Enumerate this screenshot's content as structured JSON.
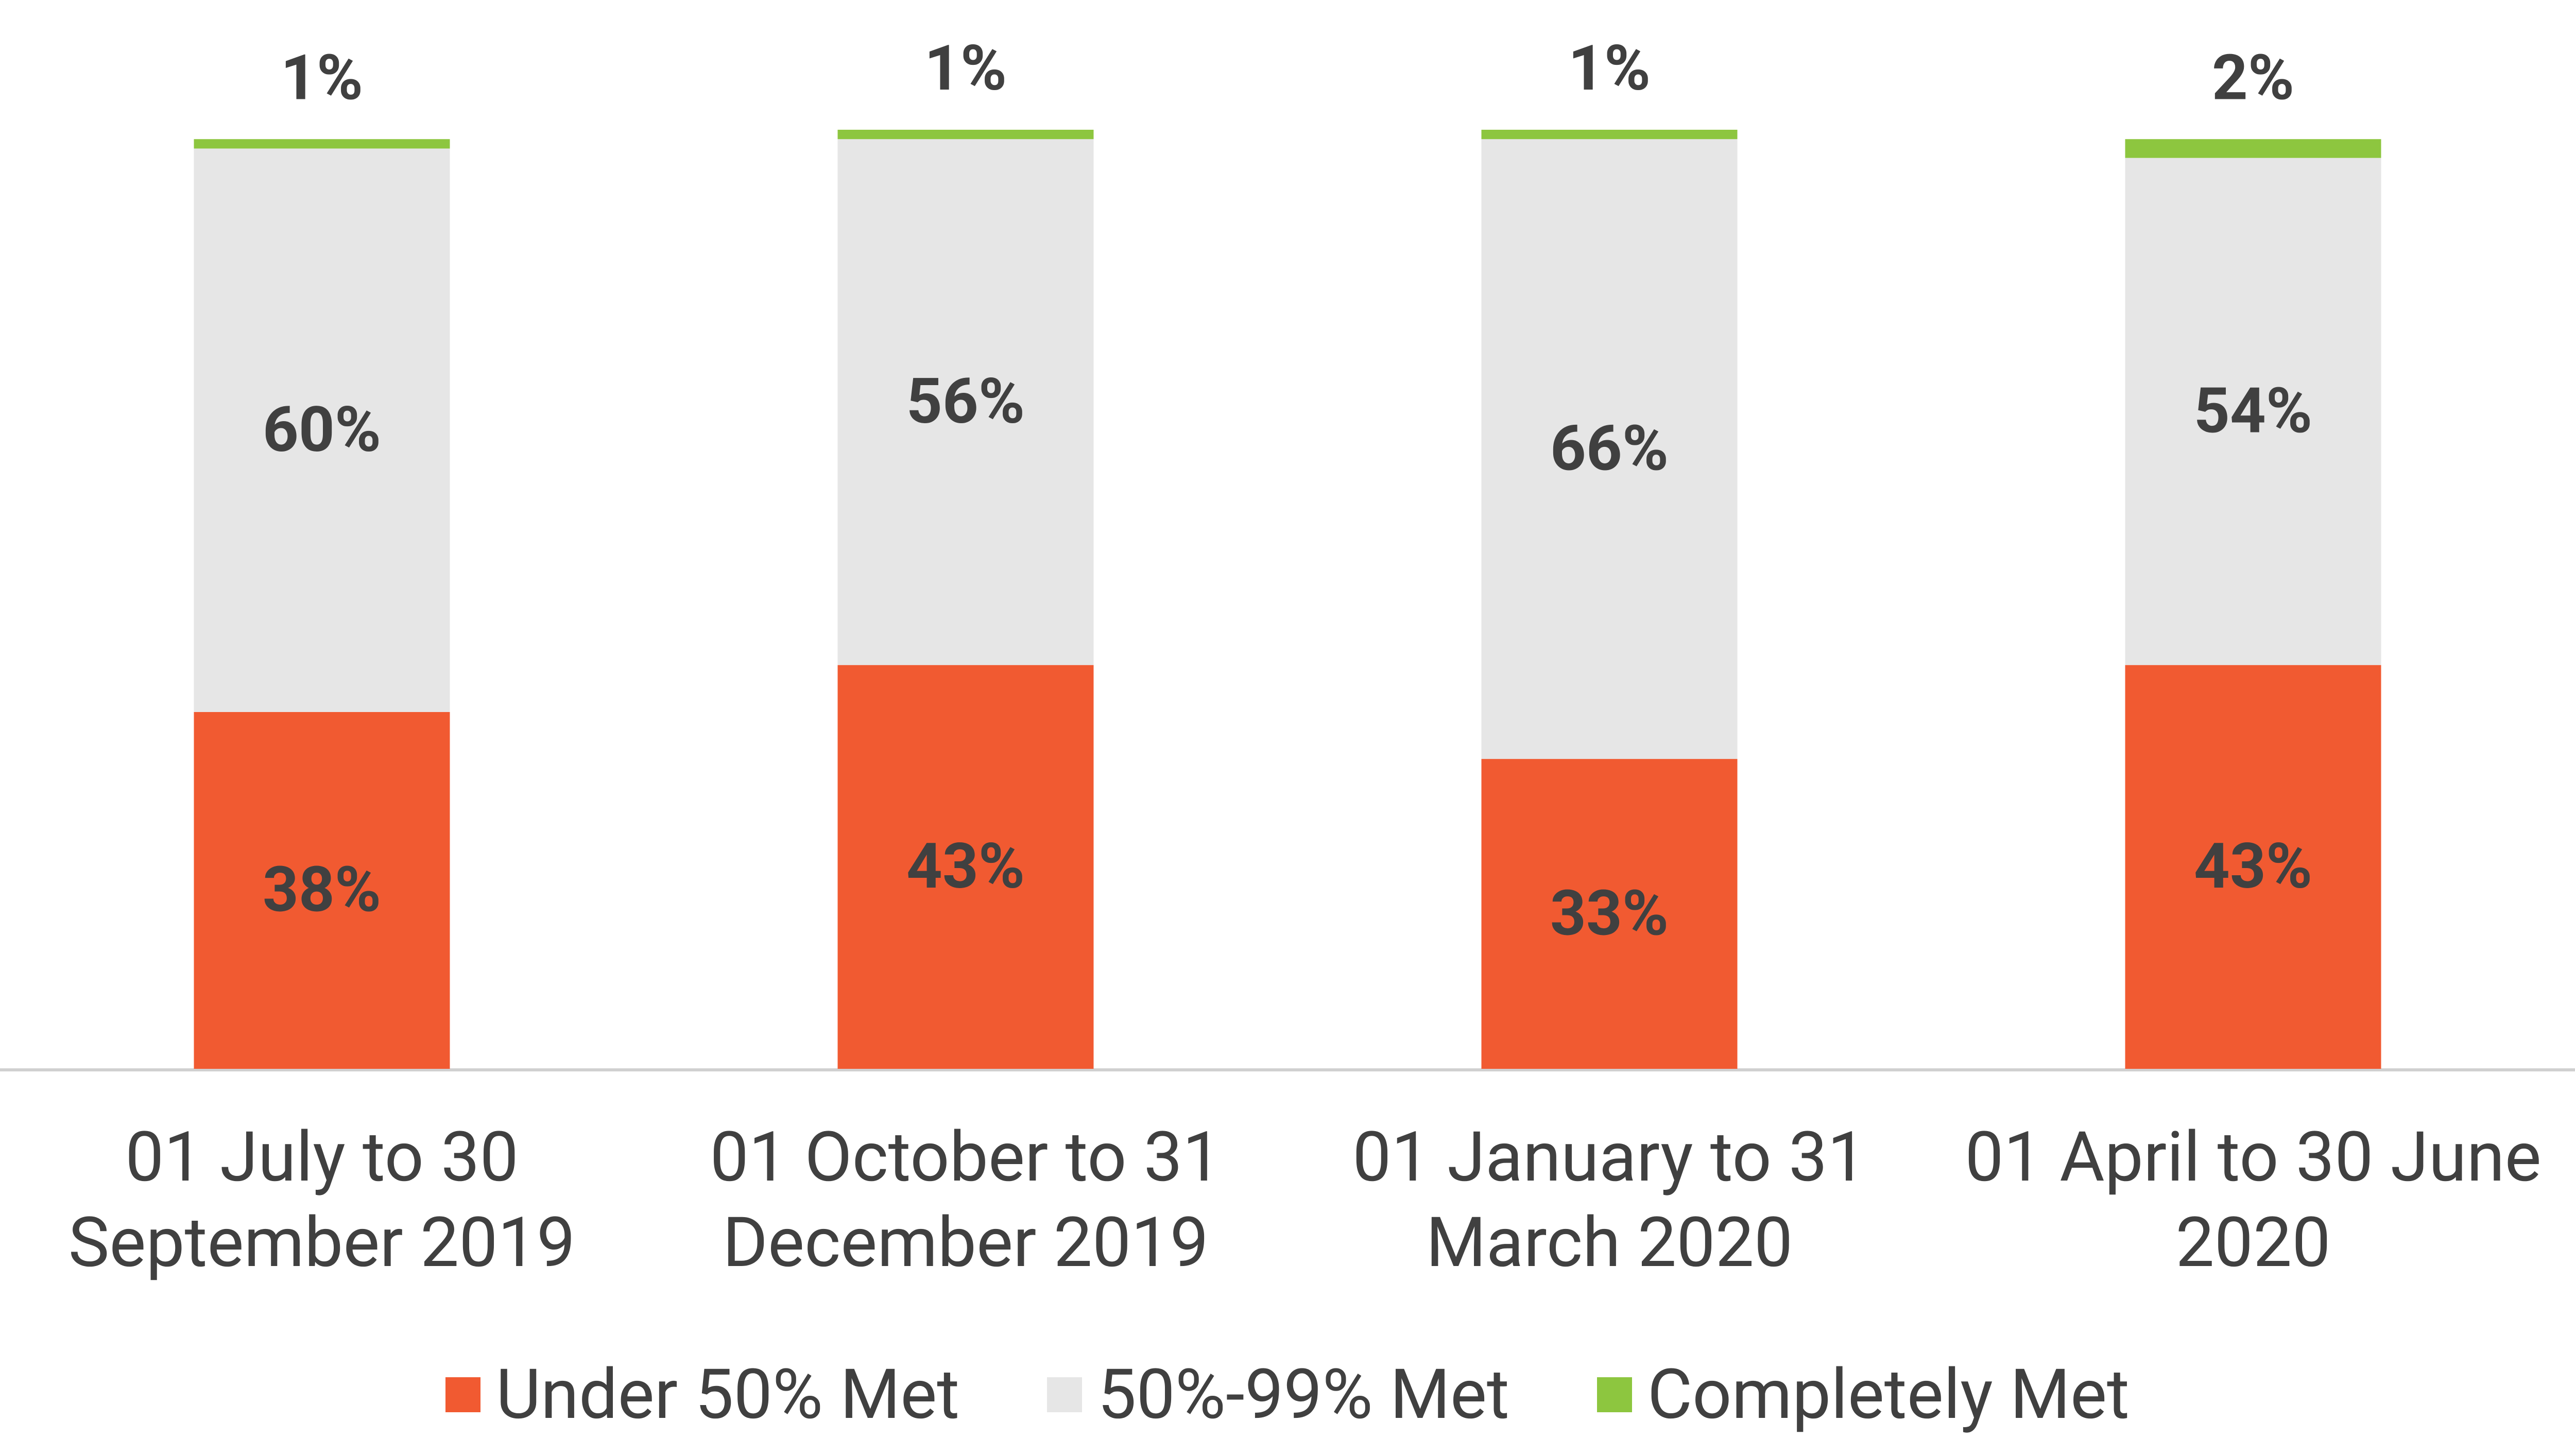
{
  "chart_data": {
    "type": "stacked-bar",
    "categories": [
      "01 July to 30 September 2019",
      "01 October to 31 December 2019",
      "01 January to 31 March 2020",
      "01 April to 30 June 2020"
    ],
    "series": [
      {
        "name": "Under 50% Met",
        "color": "#f15a31",
        "values": [
          38,
          43,
          33,
          43
        ],
        "value_labels": [
          "38%",
          "43%",
          "33%",
          "43%"
        ]
      },
      {
        "name": "50%-99% Met",
        "color": "#e6e6e6",
        "values": [
          60,
          56,
          66,
          54
        ],
        "value_labels": [
          "60%",
          "56%",
          "66%",
          "54%"
        ]
      },
      {
        "name": "Completely Met",
        "color": "#8dc63f",
        "values": [
          1,
          1,
          1,
          2
        ],
        "value_labels": [
          "1%",
          "1%",
          "1%",
          "2%"
        ]
      }
    ]
  }
}
